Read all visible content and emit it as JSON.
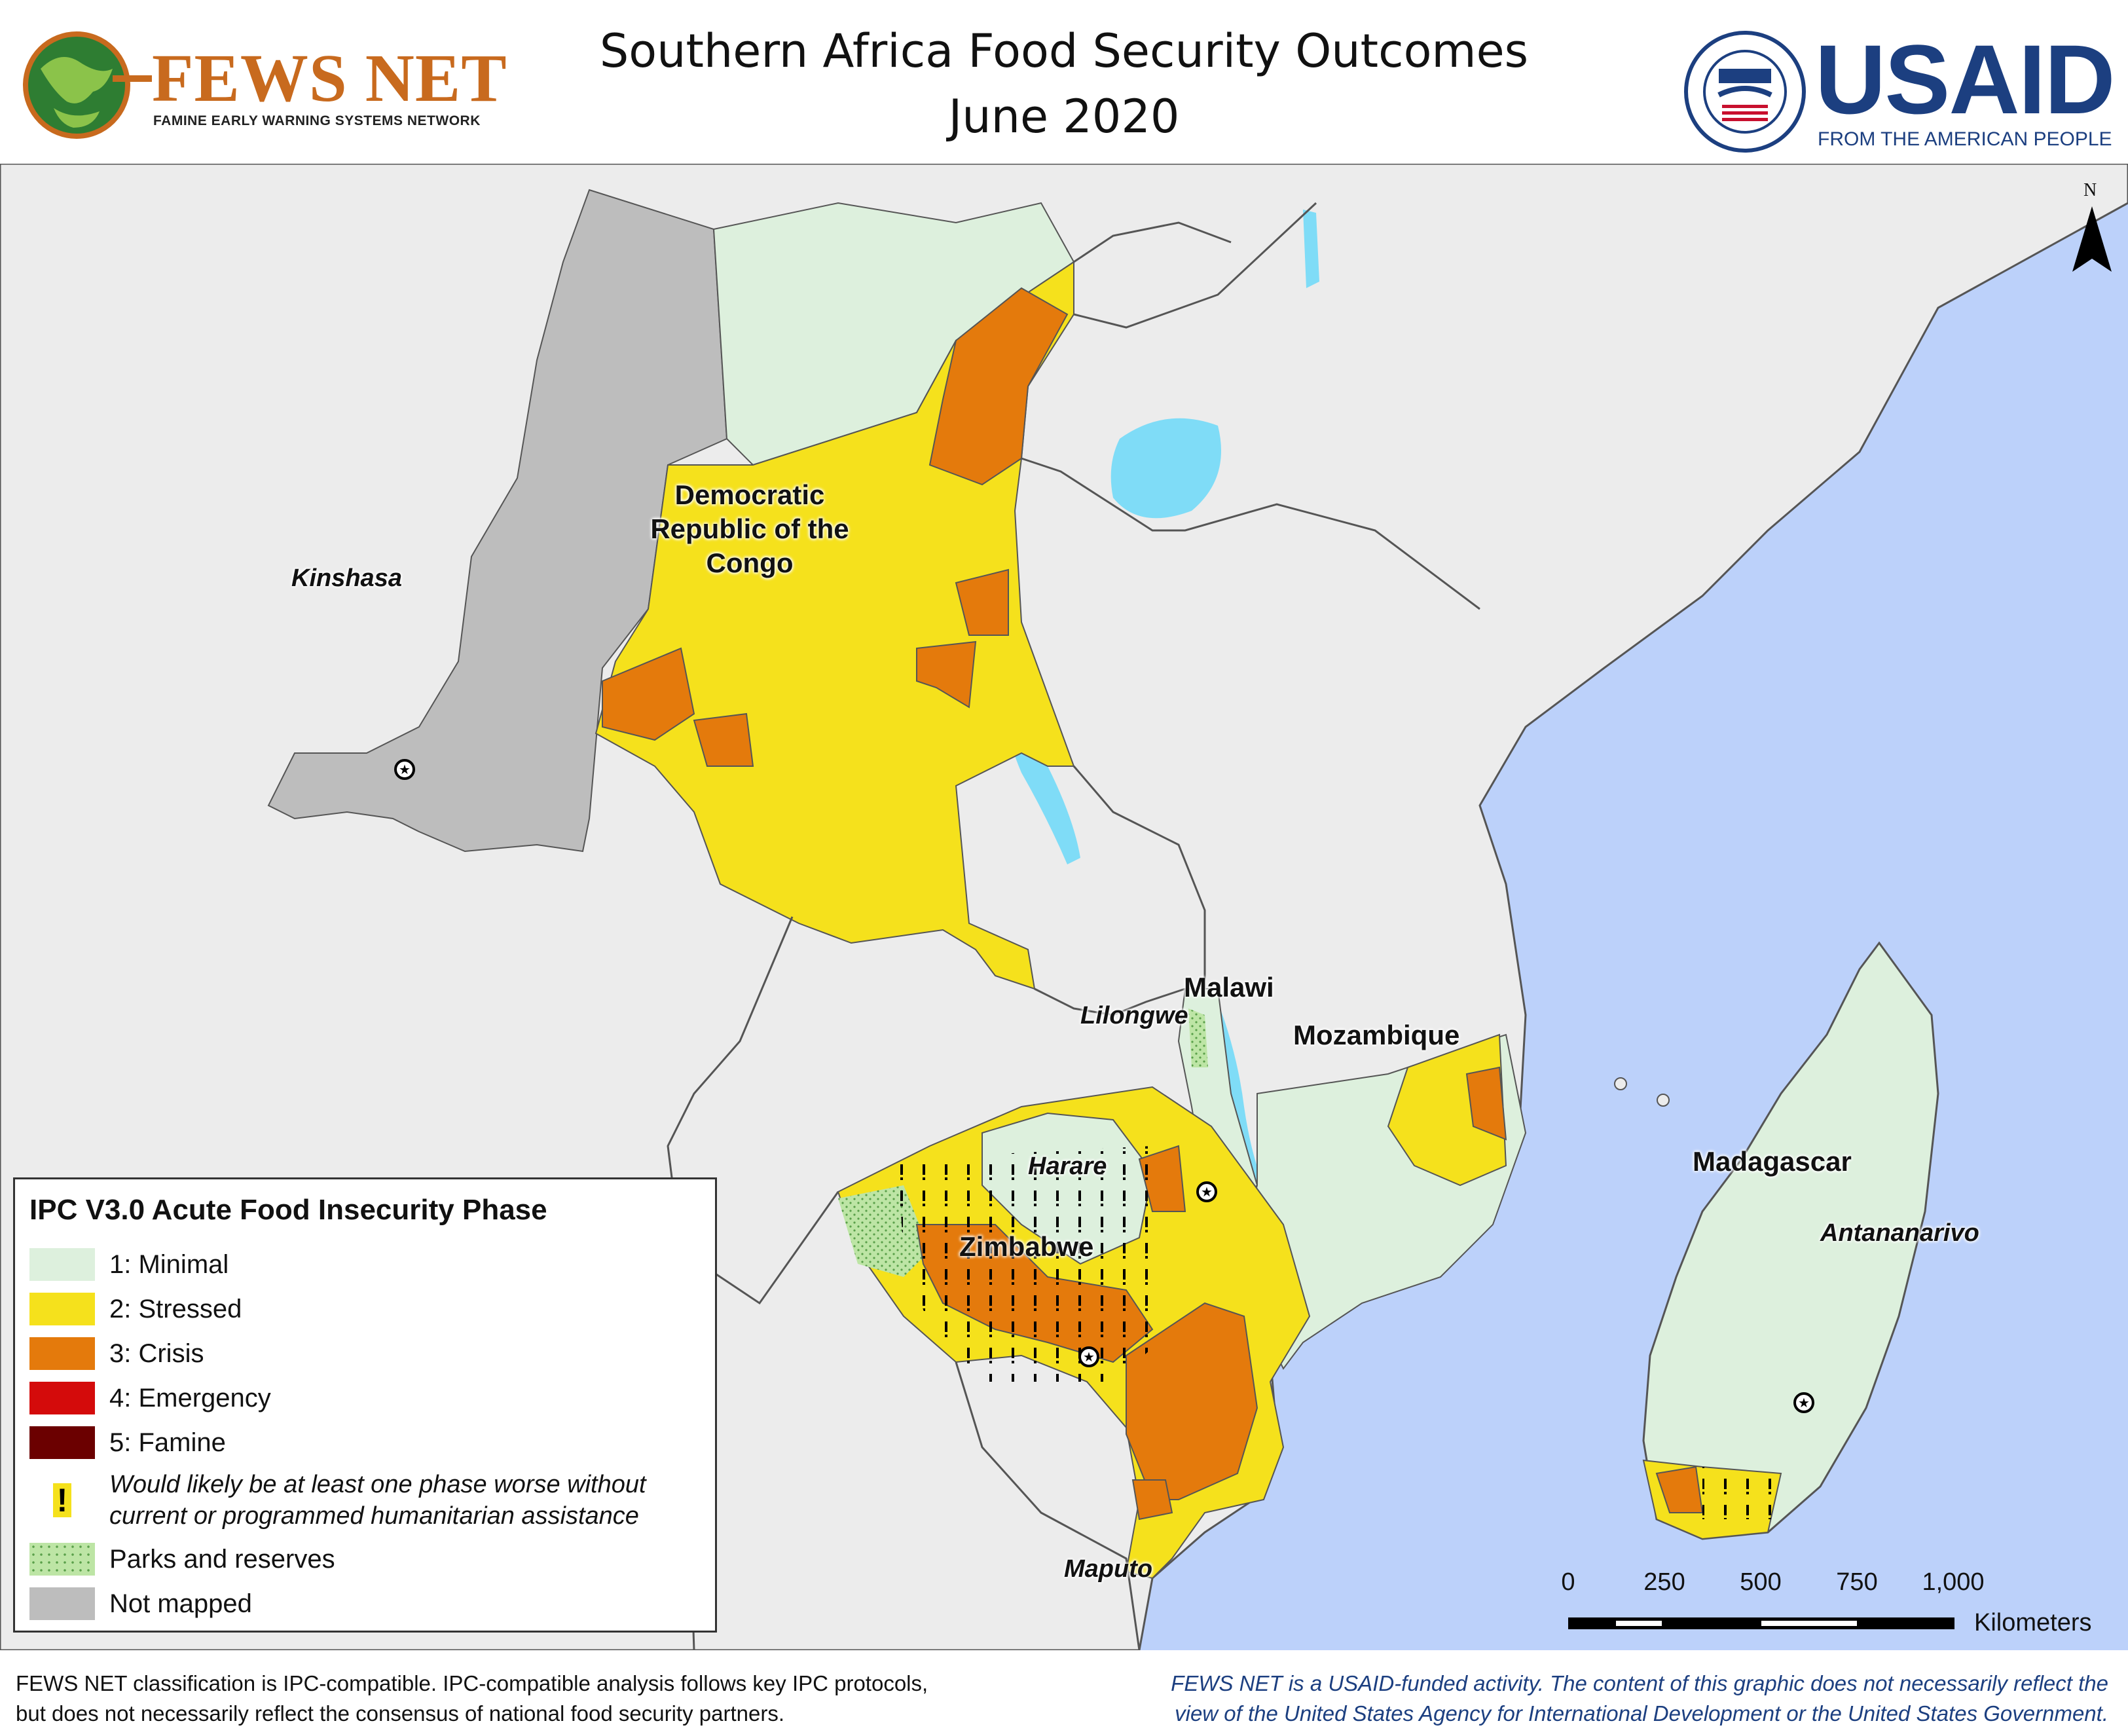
{
  "header": {
    "title_line1": "Southern Africa Food Security Outcomes",
    "title_line2": "June 2020",
    "fews_logo_text": "FEWS NET",
    "fews_logo_subtitle": "FAMINE EARLY WARNING SYSTEMS NETWORK",
    "usaid_logo_text": "USAID",
    "usaid_tagline": "FROM THE AMERICAN PEOPLE"
  },
  "map": {
    "north_label": "N",
    "country_labels": {
      "drc": "Democratic Republic of the Congo",
      "malawi": "Malawi",
      "mozambique": "Mozambique",
      "zimbabwe": "Zimbabwe",
      "madagascar": "Madagascar"
    },
    "capital_labels": {
      "kinshasa": "Kinshasa",
      "lilongwe": "Lilongwe",
      "harare": "Harare",
      "antananarivo": "Antananarivo",
      "maputo": "Maputo"
    },
    "colors": {
      "ocean": "#bcd1fa",
      "land_outside": "#ececec",
      "lakes": "#7fdcf7",
      "not_mapped": "#bdbdbd",
      "minimal": "#ddf0dd",
      "stressed": "#f5e11c",
      "crisis": "#e47a0c",
      "emergency": "#d40b0b",
      "famine": "#6b0000",
      "parks": "#bde5a5",
      "border": "#555555"
    },
    "scale": {
      "ticks": [
        "0",
        "250",
        "500",
        "750",
        "1,000"
      ],
      "unit": "Kilometers"
    }
  },
  "legend": {
    "title": "IPC V3.0 Acute Food Insecurity Phase",
    "items": [
      {
        "label": "1: Minimal",
        "color": "#ddf0dd"
      },
      {
        "label": "2: Stressed",
        "color": "#f5e11c"
      },
      {
        "label": "3: Crisis",
        "color": "#e47a0c"
      },
      {
        "label": "4: Emergency",
        "color": "#d40b0b"
      },
      {
        "label": "5: Famine",
        "color": "#6b0000"
      }
    ],
    "assistance_symbol": "!",
    "assistance_label": "Would likely be at least one phase worse without current or programmed humanitarian assistance",
    "parks_label": "Parks and reserves",
    "not_mapped_label": "Not mapped"
  },
  "footer": {
    "left_line1": "FEWS NET classification is IPC-compatible. IPC-compatible analysis follows key IPC protocols,",
    "left_line2": "but does not necessarily reflect the consensus of national food security partners.",
    "right_line1": "FEWS NET is a USAID-funded activity. The content of this graphic does not necessarily reflect the",
    "right_line2": "view of the United States Agency for International Development or the United States Government."
  }
}
